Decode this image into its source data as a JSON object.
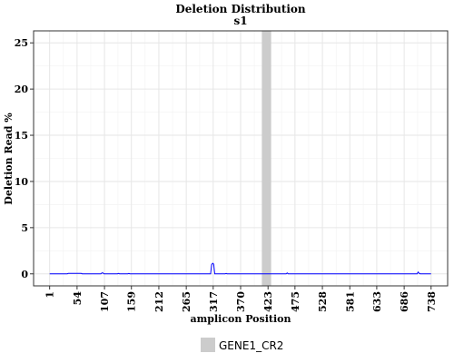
{
  "chart_data": {
    "type": "line",
    "title": "Deletion Distribution",
    "subtitle": "s1",
    "xlabel": "amplicon Position",
    "ylabel": "Deletion Read %",
    "xlim": [
      -30,
      770
    ],
    "ylim": [
      -1.3,
      26.3
    ],
    "x_ticks": [
      1,
      54,
      107,
      159,
      212,
      265,
      317,
      370,
      423,
      475,
      528,
      581,
      633,
      686,
      738
    ],
    "y_ticks": [
      0,
      5,
      10,
      15,
      20,
      25
    ],
    "grid": true,
    "legend_position": "bottom",
    "highlight_regions": [
      {
        "name": "GENE1_CR2",
        "start": 411,
        "end": 429,
        "color": "#cccccc"
      }
    ],
    "series": [
      {
        "color": "#0000ff",
        "points": [
          [
            1,
            0
          ],
          [
            35,
            0
          ],
          [
            37,
            0.05
          ],
          [
            62,
            0.05
          ],
          [
            64,
            0
          ],
          [
            100,
            0
          ],
          [
            102,
            0.1
          ],
          [
            104,
            0.1
          ],
          [
            106,
            0
          ],
          [
            132,
            0
          ],
          [
            134,
            0.05
          ],
          [
            136,
            0
          ],
          [
            152,
            0
          ],
          [
            154,
            0.05
          ],
          [
            156,
            0
          ],
          [
            312,
            0
          ],
          [
            314,
            1.0
          ],
          [
            316,
            1.15
          ],
          [
            318,
            1.05
          ],
          [
            320,
            0
          ],
          [
            340,
            0
          ],
          [
            342,
            0.05
          ],
          [
            344,
            0
          ],
          [
            458,
            0
          ],
          [
            460,
            0.1
          ],
          [
            462,
            0
          ],
          [
            711,
            0
          ],
          [
            713,
            0.2
          ],
          [
            715,
            0.05
          ],
          [
            717,
            0
          ],
          [
            738,
            0
          ]
        ]
      }
    ]
  }
}
